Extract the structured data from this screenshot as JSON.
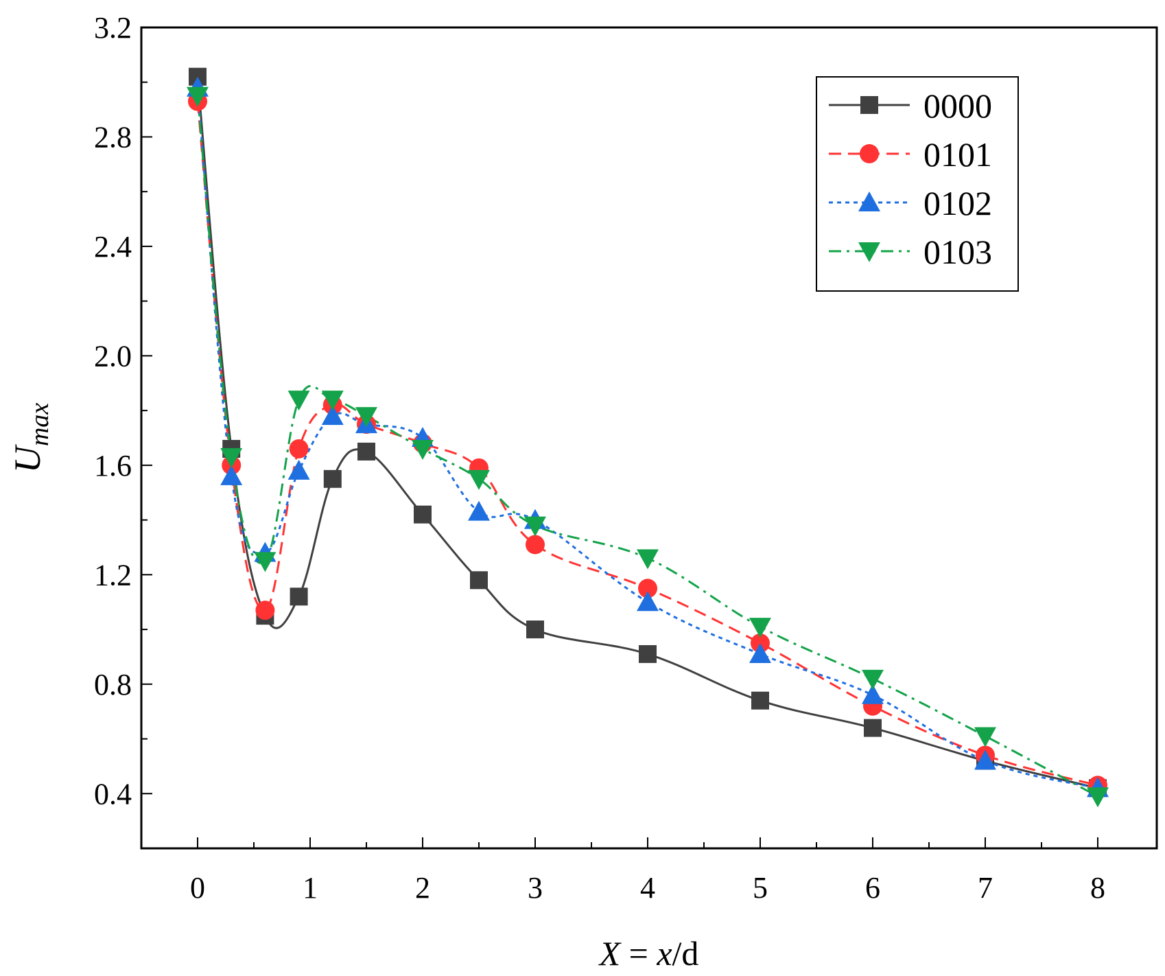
{
  "chart_data": {
    "type": "line",
    "title": "",
    "xlabel": "X = x/d",
    "xlabel_parts": {
      "var": "X",
      "eq": " = ",
      "num": "x",
      "den": "/d"
    },
    "ylabel": "Umax",
    "ylabel_parts": {
      "base": "U",
      "sub": "max"
    },
    "xlim": [
      -0.5,
      8.4
    ],
    "ylim": [
      0.2,
      3.2
    ],
    "xticks": [
      0,
      1,
      2,
      3,
      4,
      5,
      6,
      7,
      8
    ],
    "xtick_labels": [
      "0",
      "1",
      "2",
      "3",
      "4",
      "5",
      "6",
      "7",
      "8"
    ],
    "yticks": [
      0.4,
      0.8,
      1.2,
      1.6,
      2.0,
      2.4,
      2.8,
      3.2
    ],
    "ytick_labels": [
      "0.4",
      "0.8",
      "1.2",
      "1.6",
      "2.0",
      "2.4",
      "2.8",
      "3.2"
    ],
    "grid": false,
    "legend_position": "top-right",
    "x": [
      0,
      0.3,
      0.6,
      0.9,
      1.2,
      1.5,
      2,
      2.5,
      3,
      4,
      5,
      6,
      7,
      8
    ],
    "series": [
      {
        "name": "0000",
        "color": "#404040",
        "marker": "square",
        "line_style": "solid",
        "values": [
          3.02,
          1.66,
          1.05,
          1.12,
          1.55,
          1.65,
          1.42,
          1.18,
          1.0,
          0.91,
          0.74,
          0.64,
          0.52,
          0.42
        ]
      },
      {
        "name": "0101",
        "color": "#ff3333",
        "marker": "circle",
        "line_style": "dashed",
        "values": [
          2.93,
          1.6,
          1.07,
          1.66,
          1.82,
          1.75,
          1.68,
          1.59,
          1.31,
          1.15,
          0.95,
          0.72,
          0.54,
          0.43
        ]
      },
      {
        "name": "0102",
        "color": "#1f6fe0",
        "marker": "triangle-up",
        "line_style": "dotted",
        "values": [
          2.98,
          1.56,
          1.28,
          1.58,
          1.78,
          1.75,
          1.7,
          1.43,
          1.4,
          1.1,
          0.91,
          0.76,
          0.52,
          0.42
        ]
      },
      {
        "name": "0103",
        "color": "#14a34a",
        "marker": "triangle-down",
        "line_style": "dashdot",
        "values": [
          2.95,
          1.63,
          1.25,
          1.84,
          1.84,
          1.78,
          1.66,
          1.55,
          1.38,
          1.26,
          1.01,
          0.82,
          0.61,
          0.39
        ]
      }
    ]
  }
}
